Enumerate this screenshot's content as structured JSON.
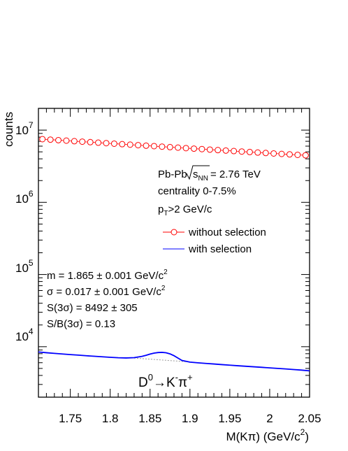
{
  "chart_data": {
    "type": "line",
    "ylabel": "counts",
    "xlabel_main": "M(Kπ) (GeV/c",
    "xlabel_sup": "2",
    "xlabel_end": ")",
    "y_scale": "log",
    "xlim": [
      1.71,
      2.05
    ],
    "ylim": [
      2000,
      20000000
    ],
    "x_ticks": [
      {
        "value": 1.75,
        "label": "1.75"
      },
      {
        "value": 1.8,
        "label": "1.8"
      },
      {
        "value": 1.85,
        "label": "1.85"
      },
      {
        "value": 1.9,
        "label": "1.9"
      },
      {
        "value": 1.95,
        "label": "1.95"
      },
      {
        "value": 2.0,
        "label": "2"
      },
      {
        "value": 2.05,
        "label": "2.05"
      }
    ],
    "y_ticks": [
      {
        "value": 10000,
        "base": "10",
        "exp": "4"
      },
      {
        "value": 100000,
        "base": "10",
        "exp": "5"
      },
      {
        "value": 1000000,
        "base": "10",
        "exp": "6"
      },
      {
        "value": 10000000,
        "base": "10",
        "exp": "7"
      }
    ],
    "legend_placement": "right",
    "grid": false,
    "series": [
      {
        "name": "without selection",
        "color": "#ff0000",
        "marker": "open-circle",
        "x": [
          1.715,
          1.725,
          1.735,
          1.745,
          1.755,
          1.765,
          1.775,
          1.785,
          1.795,
          1.805,
          1.815,
          1.825,
          1.835,
          1.845,
          1.855,
          1.865,
          1.875,
          1.885,
          1.895,
          1.905,
          1.915,
          1.925,
          1.935,
          1.945,
          1.955,
          1.965,
          1.975,
          1.985,
          1.995,
          2.005,
          2.015,
          2.025,
          2.035,
          2.045
        ],
        "y": [
          7500000,
          7380000,
          7260000,
          7150000,
          7030000,
          6920000,
          6810000,
          6700000,
          6600000,
          6490000,
          6390000,
          6290000,
          6190000,
          6090000,
          6000000,
          5900000,
          5810000,
          5720000,
          5630000,
          5540000,
          5460000,
          5370000,
          5290000,
          5210000,
          5130000,
          5050000,
          4970000,
          4890000,
          4820000,
          4750000,
          4680000,
          4610000,
          4540000,
          4480000
        ]
      },
      {
        "name": "with selection",
        "color": "#0000ff",
        "x": [
          1.71,
          1.72,
          1.73,
          1.74,
          1.75,
          1.76,
          1.77,
          1.78,
          1.79,
          1.8,
          1.81,
          1.82,
          1.83,
          1.84,
          1.845,
          1.85,
          1.855,
          1.86,
          1.865,
          1.87,
          1.875,
          1.88,
          1.885,
          1.89,
          1.9,
          1.91,
          1.92,
          1.93,
          1.94,
          1.95,
          1.96,
          1.97,
          1.98,
          1.99,
          2.0,
          2.01,
          2.02,
          2.03,
          2.04,
          2.05
        ],
        "y": [
          8450,
          8250,
          8080,
          7920,
          7780,
          7640,
          7500,
          7370,
          7250,
          7130,
          7030,
          6980,
          7050,
          7350,
          7600,
          7900,
          8150,
          8300,
          8350,
          8250,
          7950,
          7500,
          6950,
          6450,
          6120,
          5980,
          5870,
          5760,
          5650,
          5550,
          5450,
          5360,
          5270,
          5180,
          5090,
          5000,
          4920,
          4830,
          4740,
          4630
        ]
      },
      {
        "name": "",
        "color": "#999999",
        "style": "dashed",
        "x": [
          1.83,
          1.9
        ],
        "y": [
          6960,
          6140
        ]
      }
    ],
    "annotations": {
      "collision_label": "Pb-Pb",
      "sqrt_s_pre": "s",
      "sqrt_s_sub": "NN",
      "energy": "= 2.76 TeV",
      "centrality": "centrality 0-7.5%",
      "pt_p": "p",
      "pt_sub": "T",
      "pt_rest": ">2 GeV/c",
      "fit_m": "m = 1.865 ± 0.001 GeV/c",
      "fit_m_sup": "2",
      "fit_sigma": "σ = 0.017 ± 0.001 GeV/c",
      "fit_sigma_sup": "2",
      "fit_S": "S(3σ) = 8492 ± 305",
      "fit_SB": "S/B(3σ) = 0.13",
      "decay_D": "D",
      "decay_D_sup": "0",
      "decay_arrow": "→",
      "decay_K": "K",
      "decay_K_sup": "-",
      "decay_pi": "π",
      "decay_pi_sup": "+"
    }
  }
}
